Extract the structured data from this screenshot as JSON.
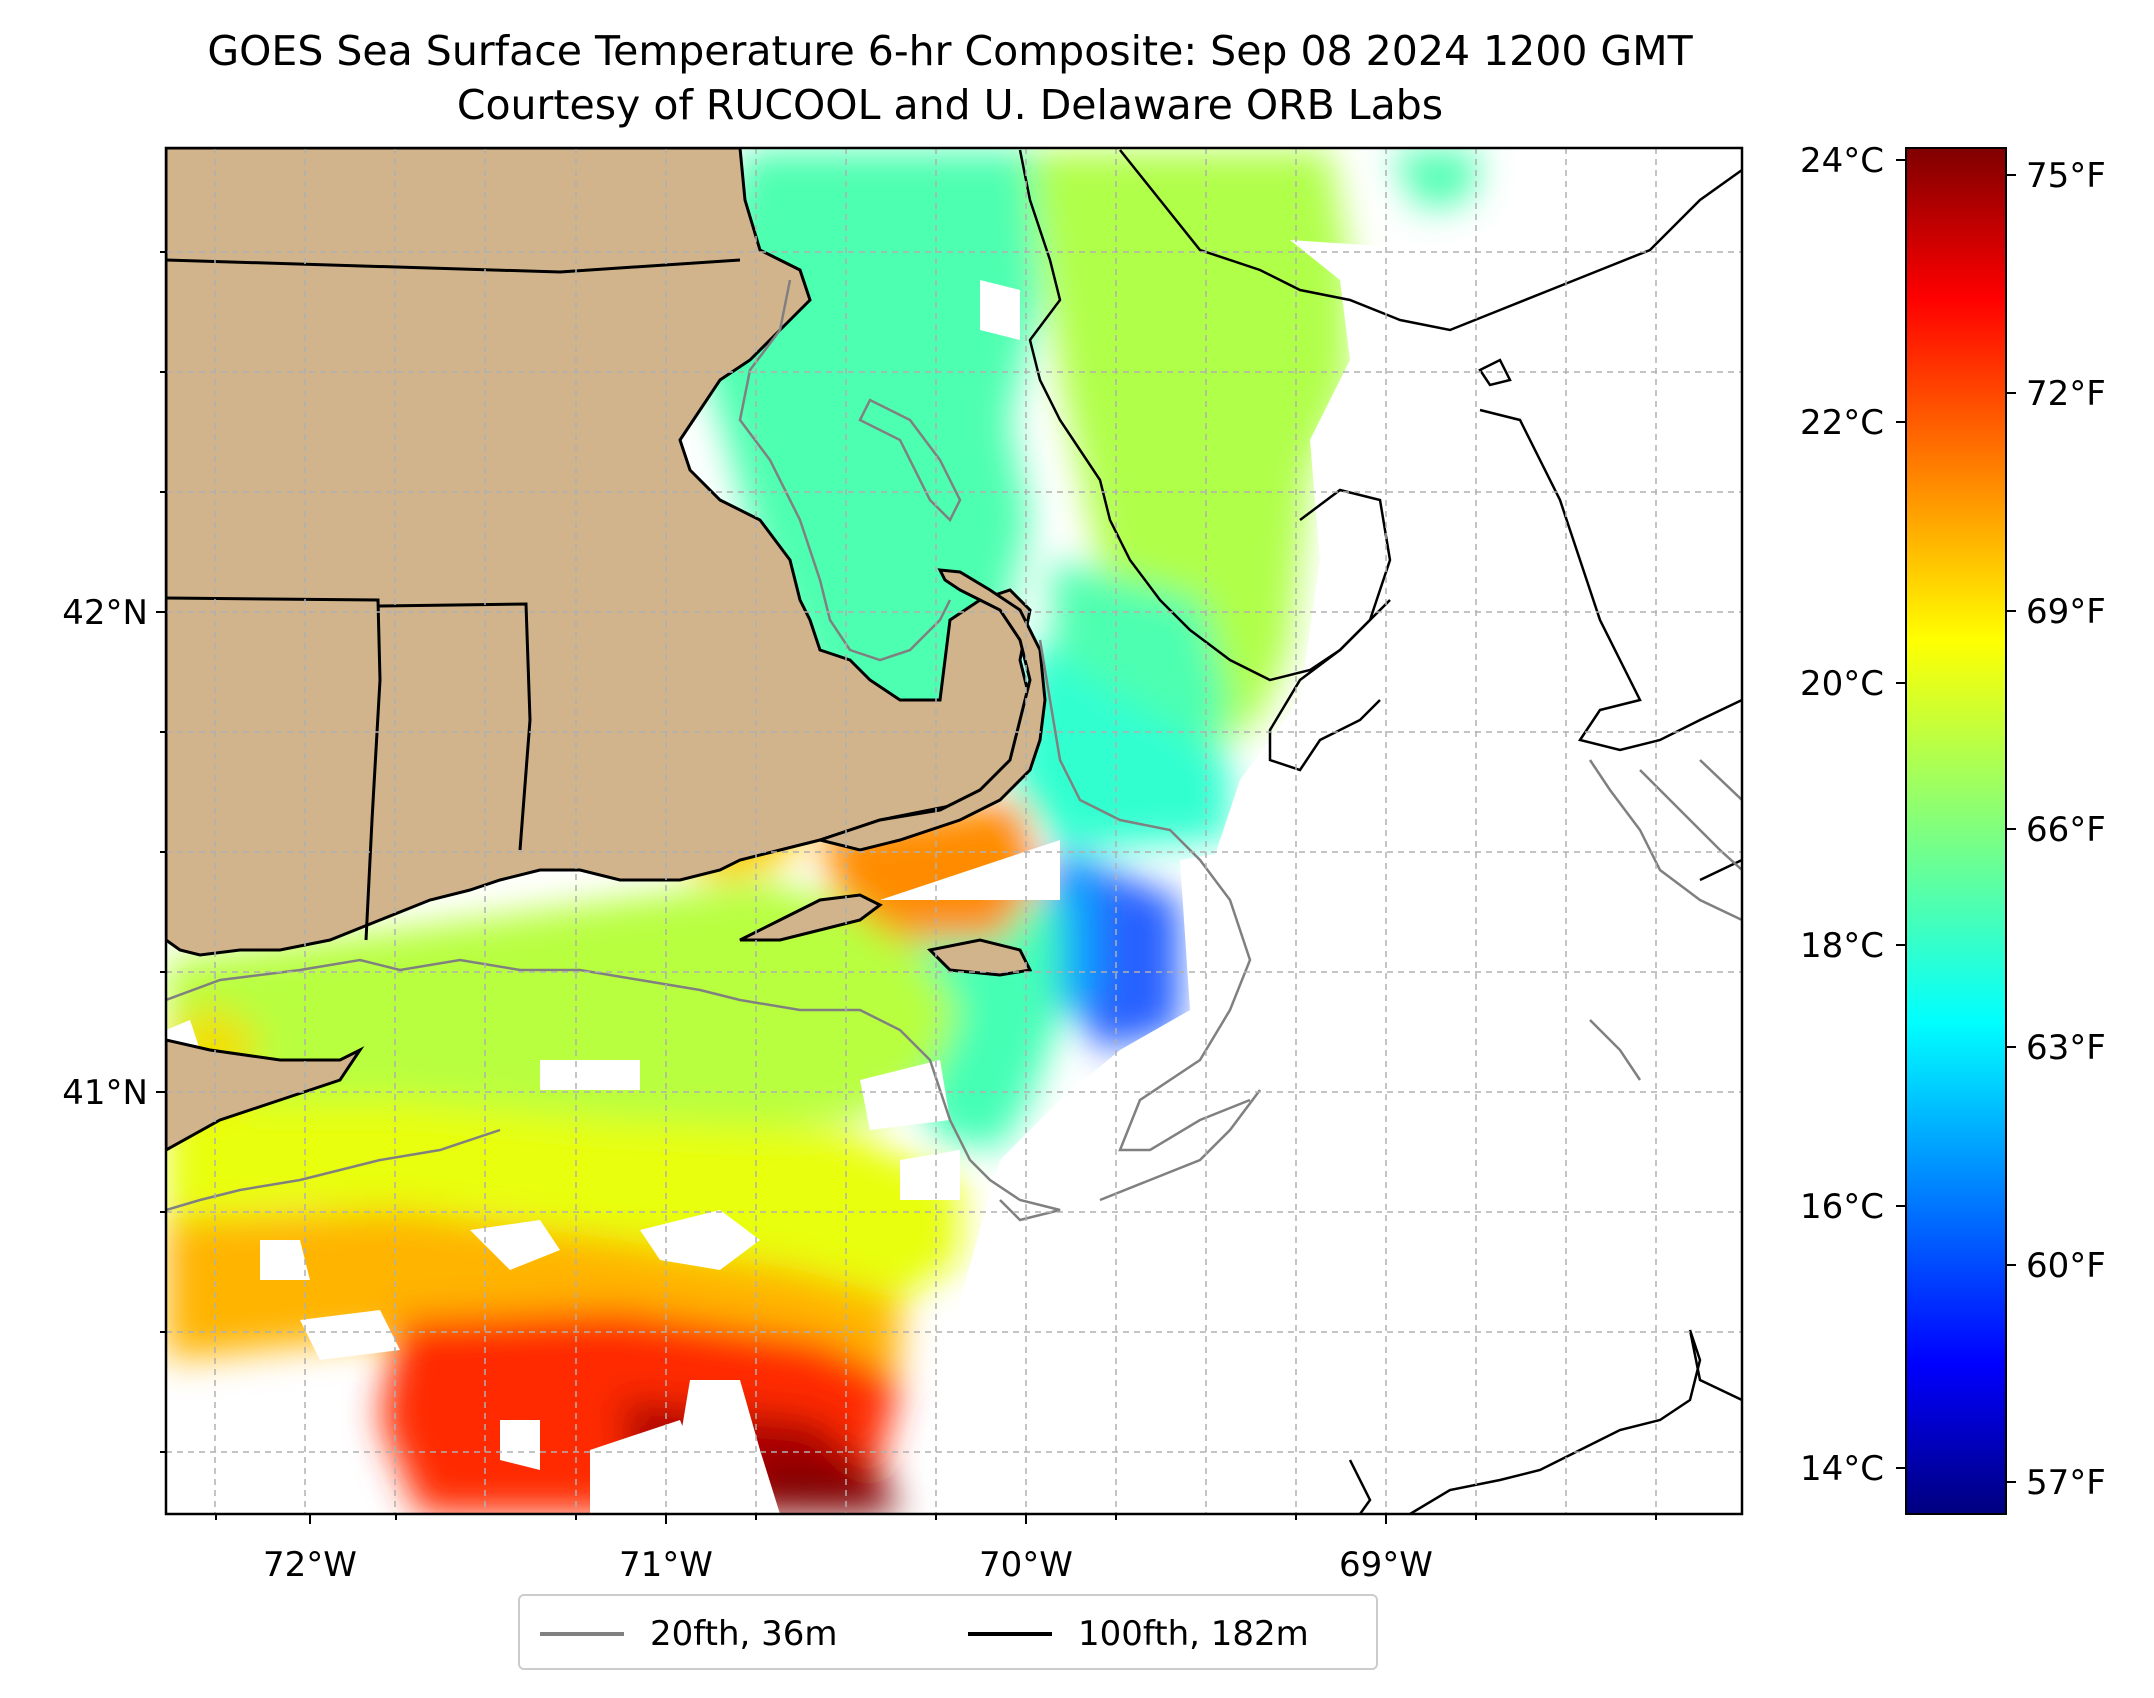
{
  "title": {
    "line1": "GOES Sea Surface Temperature 6-hr Composite: Sep 08 2024 1200 GMT",
    "line2": "Courtesy of RUCOOL and U. Delaware ORB Labs"
  },
  "map": {
    "lon_ticks": [
      "72°W",
      "71°W",
      "70°W",
      "69°W"
    ],
    "lat_ticks": [
      "42°N",
      "41°N"
    ],
    "land_color": "#d2b48c",
    "coast_color": "#000000",
    "grid_color": "#b0b0b0"
  },
  "colorbar": {
    "celsius_ticks": [
      "24°C",
      "22°C",
      "20°C",
      "18°C",
      "16°C",
      "14°C"
    ],
    "fahrenheit_ticks": [
      "75°F",
      "72°F",
      "69°F",
      "66°F",
      "63°F",
      "60°F",
      "57°F"
    ],
    "colormap": "jet"
  },
  "legend": {
    "items": [
      {
        "label": "20fth, 36m",
        "color": "#808080"
      },
      {
        "label": "100fth, 182m",
        "color": "#000000"
      }
    ]
  }
}
